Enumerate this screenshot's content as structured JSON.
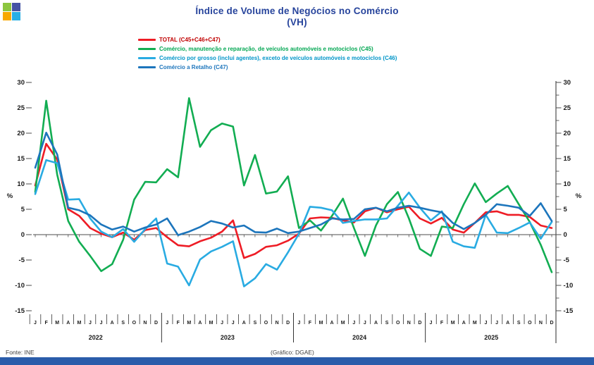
{
  "logo": {
    "squares": [
      "#8CC63F",
      "#4553A4",
      "#F7A800",
      "#28AEE4"
    ]
  },
  "title": {
    "line1": "Índice de Volume de Negócios no Comércio",
    "line2": "(VH)",
    "color": "#27449C"
  },
  "footer": {
    "source": "Fonte: INE",
    "credit": "(Gráfico: DGAE)"
  },
  "bottom_bar_color": "#2A5CAA",
  "chart_data": {
    "type": "line",
    "title": "Índice de Volume de Negócios no Comércio (VH)",
    "ylabel": "%",
    "ylabel_right": "%",
    "ylim": [
      -15,
      30
    ],
    "y_ticks": [
      30,
      25,
      20,
      15,
      10,
      5,
      0,
      -5,
      -10,
      -15
    ],
    "grid": false,
    "legend_position": "top-left",
    "x_month_labels": [
      "J",
      "F",
      "M",
      "A",
      "M",
      "J",
      "J",
      "A",
      "S",
      "O",
      "N",
      "D"
    ],
    "years": [
      "2022",
      "2023",
      "2024",
      "2025"
    ],
    "series": [
      {
        "id": "total",
        "name": "TOTAL (C45+C46+C47)",
        "color": "#EE1C25",
        "text_color": "#C00000",
        "values": [
          9.7,
          17.9,
          14.8,
          5.0,
          3.7,
          1.3,
          0.2,
          -0.5,
          0.4,
          -1.0,
          0.9,
          1.3,
          -0.5,
          -2.1,
          -2.3,
          -1.3,
          -0.6,
          0.6,
          2.8,
          -4.6,
          -3.8,
          -2.4,
          -2.1,
          -1.2,
          0.2,
          3.2,
          3.4,
          3.3,
          2.8,
          2.4,
          4.6,
          5.3,
          4.4,
          5.0,
          5.5,
          3.2,
          2.2,
          3.3,
          1.0,
          0.4,
          2.3,
          4.4,
          4.6,
          3.9,
          3.9,
          3.5,
          1.8,
          1.3
        ]
      },
      {
        "id": "c45",
        "name": "Comércio, manutenção e reparação, de veículos automóveis e motociclos (C45)",
        "color": "#12AD52",
        "text_color": "#00A651",
        "values": [
          8.4,
          26.4,
          11.8,
          2.7,
          -1.4,
          -4.2,
          -7.2,
          -5.8,
          -1.0,
          6.9,
          10.4,
          10.3,
          12.9,
          11.3,
          26.9,
          17.3,
          20.6,
          21.9,
          21.3,
          9.7,
          15.7,
          8.1,
          8.5,
          11.5,
          1.3,
          2.8,
          0.8,
          3.7,
          7.1,
          1.3,
          -4.2,
          1.8,
          6.0,
          8.4,
          3.2,
          -2.8,
          -4.2,
          1.6,
          1.3,
          6.0,
          10.1,
          6.4,
          8.1,
          9.6,
          6.0,
          2.5,
          -2.0,
          -7.4
        ]
      },
      {
        "id": "c46",
        "name": "Comércio por grosso (inclui agentes), exceto de veículos automóveis e motociclos (C46)",
        "color": "#29ABE2",
        "text_color": "#0095C8",
        "values": [
          8.0,
          14.7,
          14.1,
          6.9,
          7.0,
          3.2,
          0.6,
          -0.5,
          1.1,
          -1.4,
          1.1,
          3.2,
          -5.7,
          -6.3,
          -10.0,
          -4.9,
          -3.3,
          -2.4,
          -1.3,
          -10.2,
          -8.6,
          -5.8,
          -6.9,
          -3.5,
          0.2,
          5.5,
          5.3,
          4.8,
          2.3,
          2.7,
          3.0,
          3.0,
          3.2,
          5.7,
          8.3,
          5.3,
          2.8,
          4.6,
          -1.4,
          -2.3,
          -2.6,
          3.9,
          0.4,
          0.3,
          1.3,
          2.4,
          -0.8,
          2.5
        ]
      },
      {
        "id": "c47",
        "name": "Comércio a Retalho (C47)",
        "color": "#1C75BC",
        "text_color": "#1C75BC",
        "values": [
          13.2,
          20.1,
          15.8,
          5.3,
          4.8,
          3.8,
          2.0,
          1.0,
          1.6,
          0.6,
          1.4,
          2.0,
          3.2,
          -0.1,
          0.6,
          1.5,
          2.7,
          2.2,
          1.4,
          1.8,
          0.5,
          0.4,
          1.2,
          0.3,
          0.6,
          1.3,
          2.0,
          3.2,
          3.0,
          3.1,
          5.0,
          5.3,
          4.6,
          5.3,
          5.7,
          5.3,
          4.8,
          4.4,
          2.3,
          1.1,
          2.3,
          3.9,
          6.0,
          5.7,
          5.3,
          3.7,
          6.2,
          2.7
        ]
      }
    ]
  }
}
